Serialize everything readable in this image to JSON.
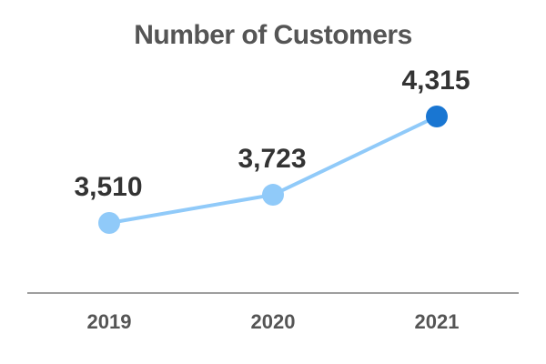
{
  "chart_data": {
    "type": "line",
    "title": "Number of Customers",
    "xlabel": "",
    "ylabel": "",
    "categories": [
      "2019",
      "2020",
      "2021"
    ],
    "values": [
      3510,
      3723,
      4315
    ],
    "data_labels": [
      "3,510",
      "3,723",
      "4,315"
    ],
    "ylim": [
      3000,
      4500
    ],
    "grid": false,
    "legend": "none",
    "colors": {
      "line": "#90CAF9",
      "point": "#90CAF9",
      "highlight_point": "#1976D2",
      "axis": "#9E9E9E"
    },
    "highlight_index": 2
  }
}
